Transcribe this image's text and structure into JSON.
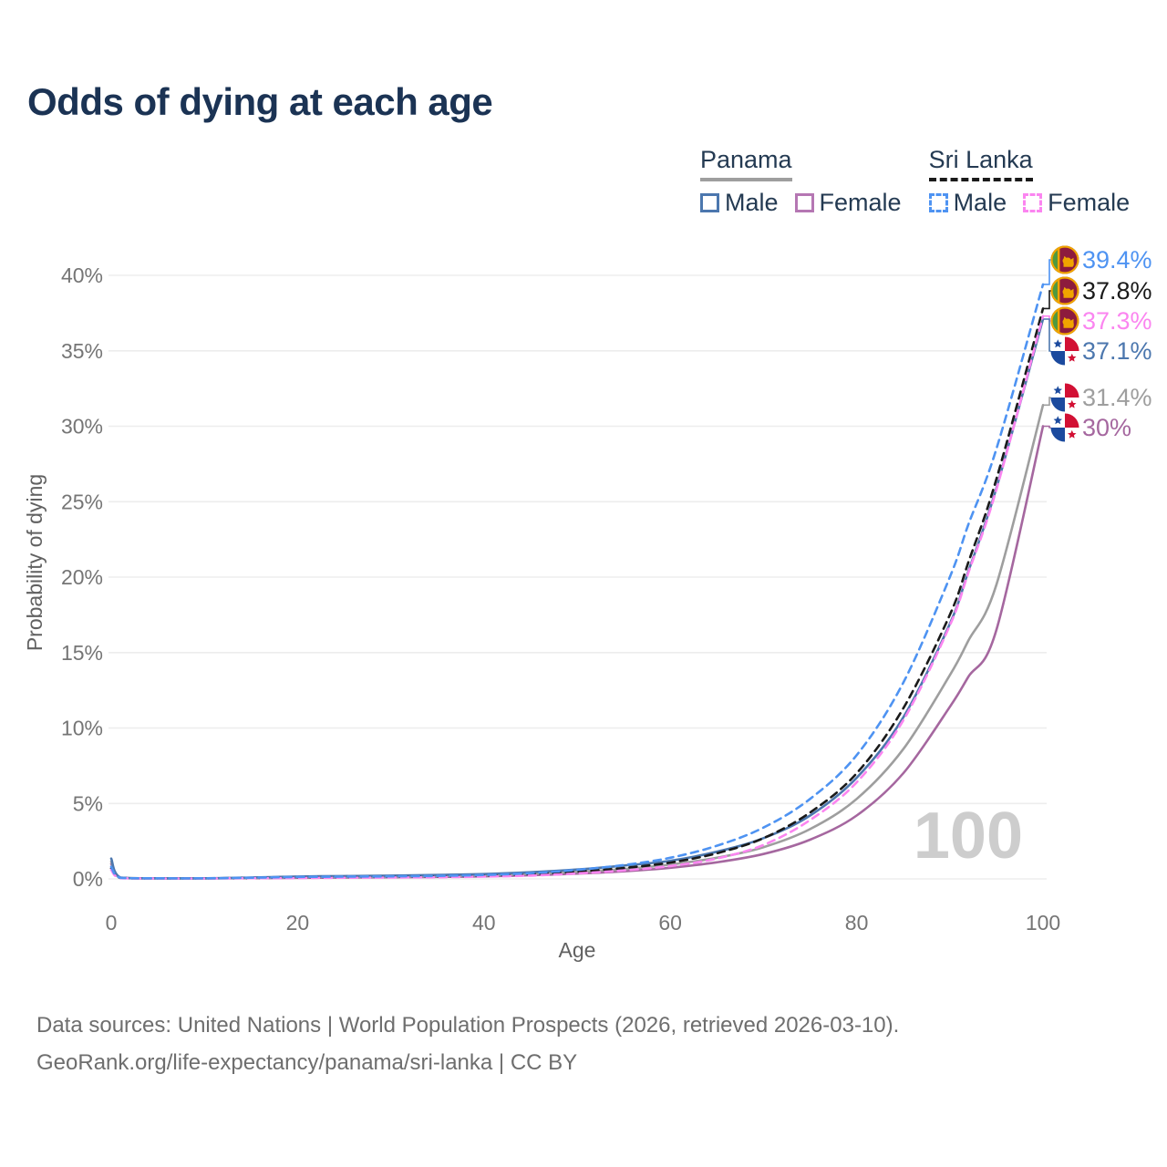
{
  "title": "Odds of dying at each age",
  "legend": {
    "groups": [
      {
        "name": "Panama",
        "line_style": "solid",
        "line_color": "#9e9e9e",
        "items": [
          {
            "label": "Male",
            "color": "#4c77ae",
            "dashed": false
          },
          {
            "label": "Female",
            "color": "#b577b3",
            "dashed": false
          }
        ]
      },
      {
        "name": "Sri Lanka",
        "line_style": "dashed",
        "line_color": "#1a1a1a",
        "items": [
          {
            "label": "Male",
            "color": "#4e93f2",
            "dashed": true
          },
          {
            "label": "Female",
            "color": "#fb85f0",
            "dashed": true
          }
        ]
      }
    ]
  },
  "watermark": "100",
  "chart_data": {
    "type": "line",
    "title": "Odds of dying at each age",
    "xlabel": "Age",
    "ylabel": "Probability of dying",
    "xlim": [
      0,
      100
    ],
    "ylim": [
      0,
      42
    ],
    "x_ticks": [
      0,
      20,
      40,
      60,
      80,
      100
    ],
    "y_ticks_pct": [
      0,
      5,
      10,
      15,
      20,
      25,
      30,
      35,
      40
    ],
    "y_tick_labels": [
      "0%",
      "5%",
      "10%",
      "15%",
      "20%",
      "25%",
      "30%",
      "35%",
      "40%"
    ],
    "grid": "horizontal-only",
    "legend_position": "top-right",
    "x": [
      0,
      1,
      5,
      10,
      15,
      20,
      25,
      30,
      35,
      40,
      45,
      50,
      55,
      60,
      65,
      70,
      75,
      80,
      85,
      90,
      92,
      95,
      100
    ],
    "series": [
      {
        "name": "Panama Female",
        "country": "Panama",
        "sex": "Female",
        "color": "#a5679f",
        "dash": null,
        "end_label": "30%",
        "values": [
          1.0,
          0.07,
          0.03,
          0.03,
          0.05,
          0.07,
          0.09,
          0.11,
          0.13,
          0.17,
          0.24,
          0.35,
          0.5,
          0.74,
          1.1,
          1.65,
          2.6,
          4.2,
          7.0,
          11.4,
          13.4,
          16.5,
          30.0
        ]
      },
      {
        "name": "Panama",
        "country": "Panama",
        "sex": "Both",
        "color": "#9e9e9e",
        "dash": null,
        "end_label": "31.4%",
        "values": [
          1.15,
          0.08,
          0.04,
          0.04,
          0.07,
          0.12,
          0.14,
          0.16,
          0.19,
          0.24,
          0.33,
          0.47,
          0.65,
          0.95,
          1.4,
          2.1,
          3.3,
          5.3,
          8.6,
          13.5,
          15.8,
          19.5,
          31.4
        ]
      },
      {
        "name": "Panama Male",
        "country": "Panama",
        "sex": "Male",
        "color": "#4c77ae",
        "dash": null,
        "end_label": "37.1%",
        "values": [
          1.35,
          0.09,
          0.04,
          0.04,
          0.09,
          0.16,
          0.19,
          0.22,
          0.26,
          0.32,
          0.44,
          0.62,
          0.88,
          1.2,
          1.8,
          2.7,
          4.2,
          6.7,
          10.7,
          16.9,
          20.4,
          25.9,
          37.1
        ]
      },
      {
        "name": "Sri Lanka",
        "country": "Sri Lanka",
        "sex": "Both",
        "color": "#1a1a1a",
        "dash": "8 6",
        "end_label": "37.8%",
        "values": [
          0.7,
          0.06,
          0.04,
          0.04,
          0.06,
          0.1,
          0.12,
          0.13,
          0.16,
          0.2,
          0.3,
          0.48,
          0.72,
          1.08,
          1.7,
          2.7,
          4.4,
          7.0,
          11.3,
          17.5,
          21.0,
          26.5,
          37.8
        ]
      },
      {
        "name": "Sri Lanka Female",
        "country": "Sri Lanka",
        "sex": "Female",
        "color": "#fb85f0",
        "dash": "8 6",
        "end_label": "37.3%",
        "values": [
          0.6,
          0.05,
          0.03,
          0.03,
          0.05,
          0.06,
          0.08,
          0.09,
          0.11,
          0.15,
          0.22,
          0.36,
          0.56,
          0.85,
          1.35,
          2.25,
          3.9,
          6.4,
          10.5,
          16.8,
          20.3,
          25.8,
          37.3
        ]
      },
      {
        "name": "Sri Lanka Male",
        "country": "Sri Lanka",
        "sex": "Male",
        "color": "#4e93f2",
        "dash": "8 6",
        "end_label": "39.4%",
        "values": [
          0.8,
          0.07,
          0.04,
          0.04,
          0.08,
          0.13,
          0.15,
          0.17,
          0.2,
          0.26,
          0.38,
          0.6,
          0.92,
          1.4,
          2.2,
          3.4,
          5.3,
          8.2,
          13.0,
          20.0,
          23.5,
          28.5,
          39.4
        ]
      }
    ],
    "end_labels": [
      {
        "text": "39.4%",
        "flag": "sri-lanka",
        "color": "#4e93f2",
        "y_pct": 39.4
      },
      {
        "text": "37.8%",
        "flag": "sri-lanka",
        "color": "#1a1a1a",
        "y_pct": 37.8
      },
      {
        "text": "37.3%",
        "flag": "sri-lanka",
        "color": "#fb85f0",
        "y_pct": 37.3
      },
      {
        "text": "37.1%",
        "flag": "panama",
        "color": "#4c77ae",
        "y_pct": 37.1
      },
      {
        "text": "31.4%",
        "flag": "panama",
        "color": "#9e9e9e",
        "y_pct": 31.4
      },
      {
        "text": "30%",
        "flag": "panama",
        "color": "#a5679f",
        "y_pct": 30.0
      }
    ],
    "flag_colors": {
      "panama": {
        "red": "#d21034",
        "blue": "#1b4a9e",
        "white": "#ffffff"
      },
      "sri_lanka": {
        "gold": "#f0a500",
        "green": "#4e9a3e",
        "maroon": "#8d1b3d"
      }
    }
  },
  "footer": {
    "line1": "Data sources: United Nations | World Population Prospects (2026, retrieved 2026-03-10).",
    "line2": "GeoRank.org/life-expectancy/panama/sri-lanka | CC BY"
  }
}
